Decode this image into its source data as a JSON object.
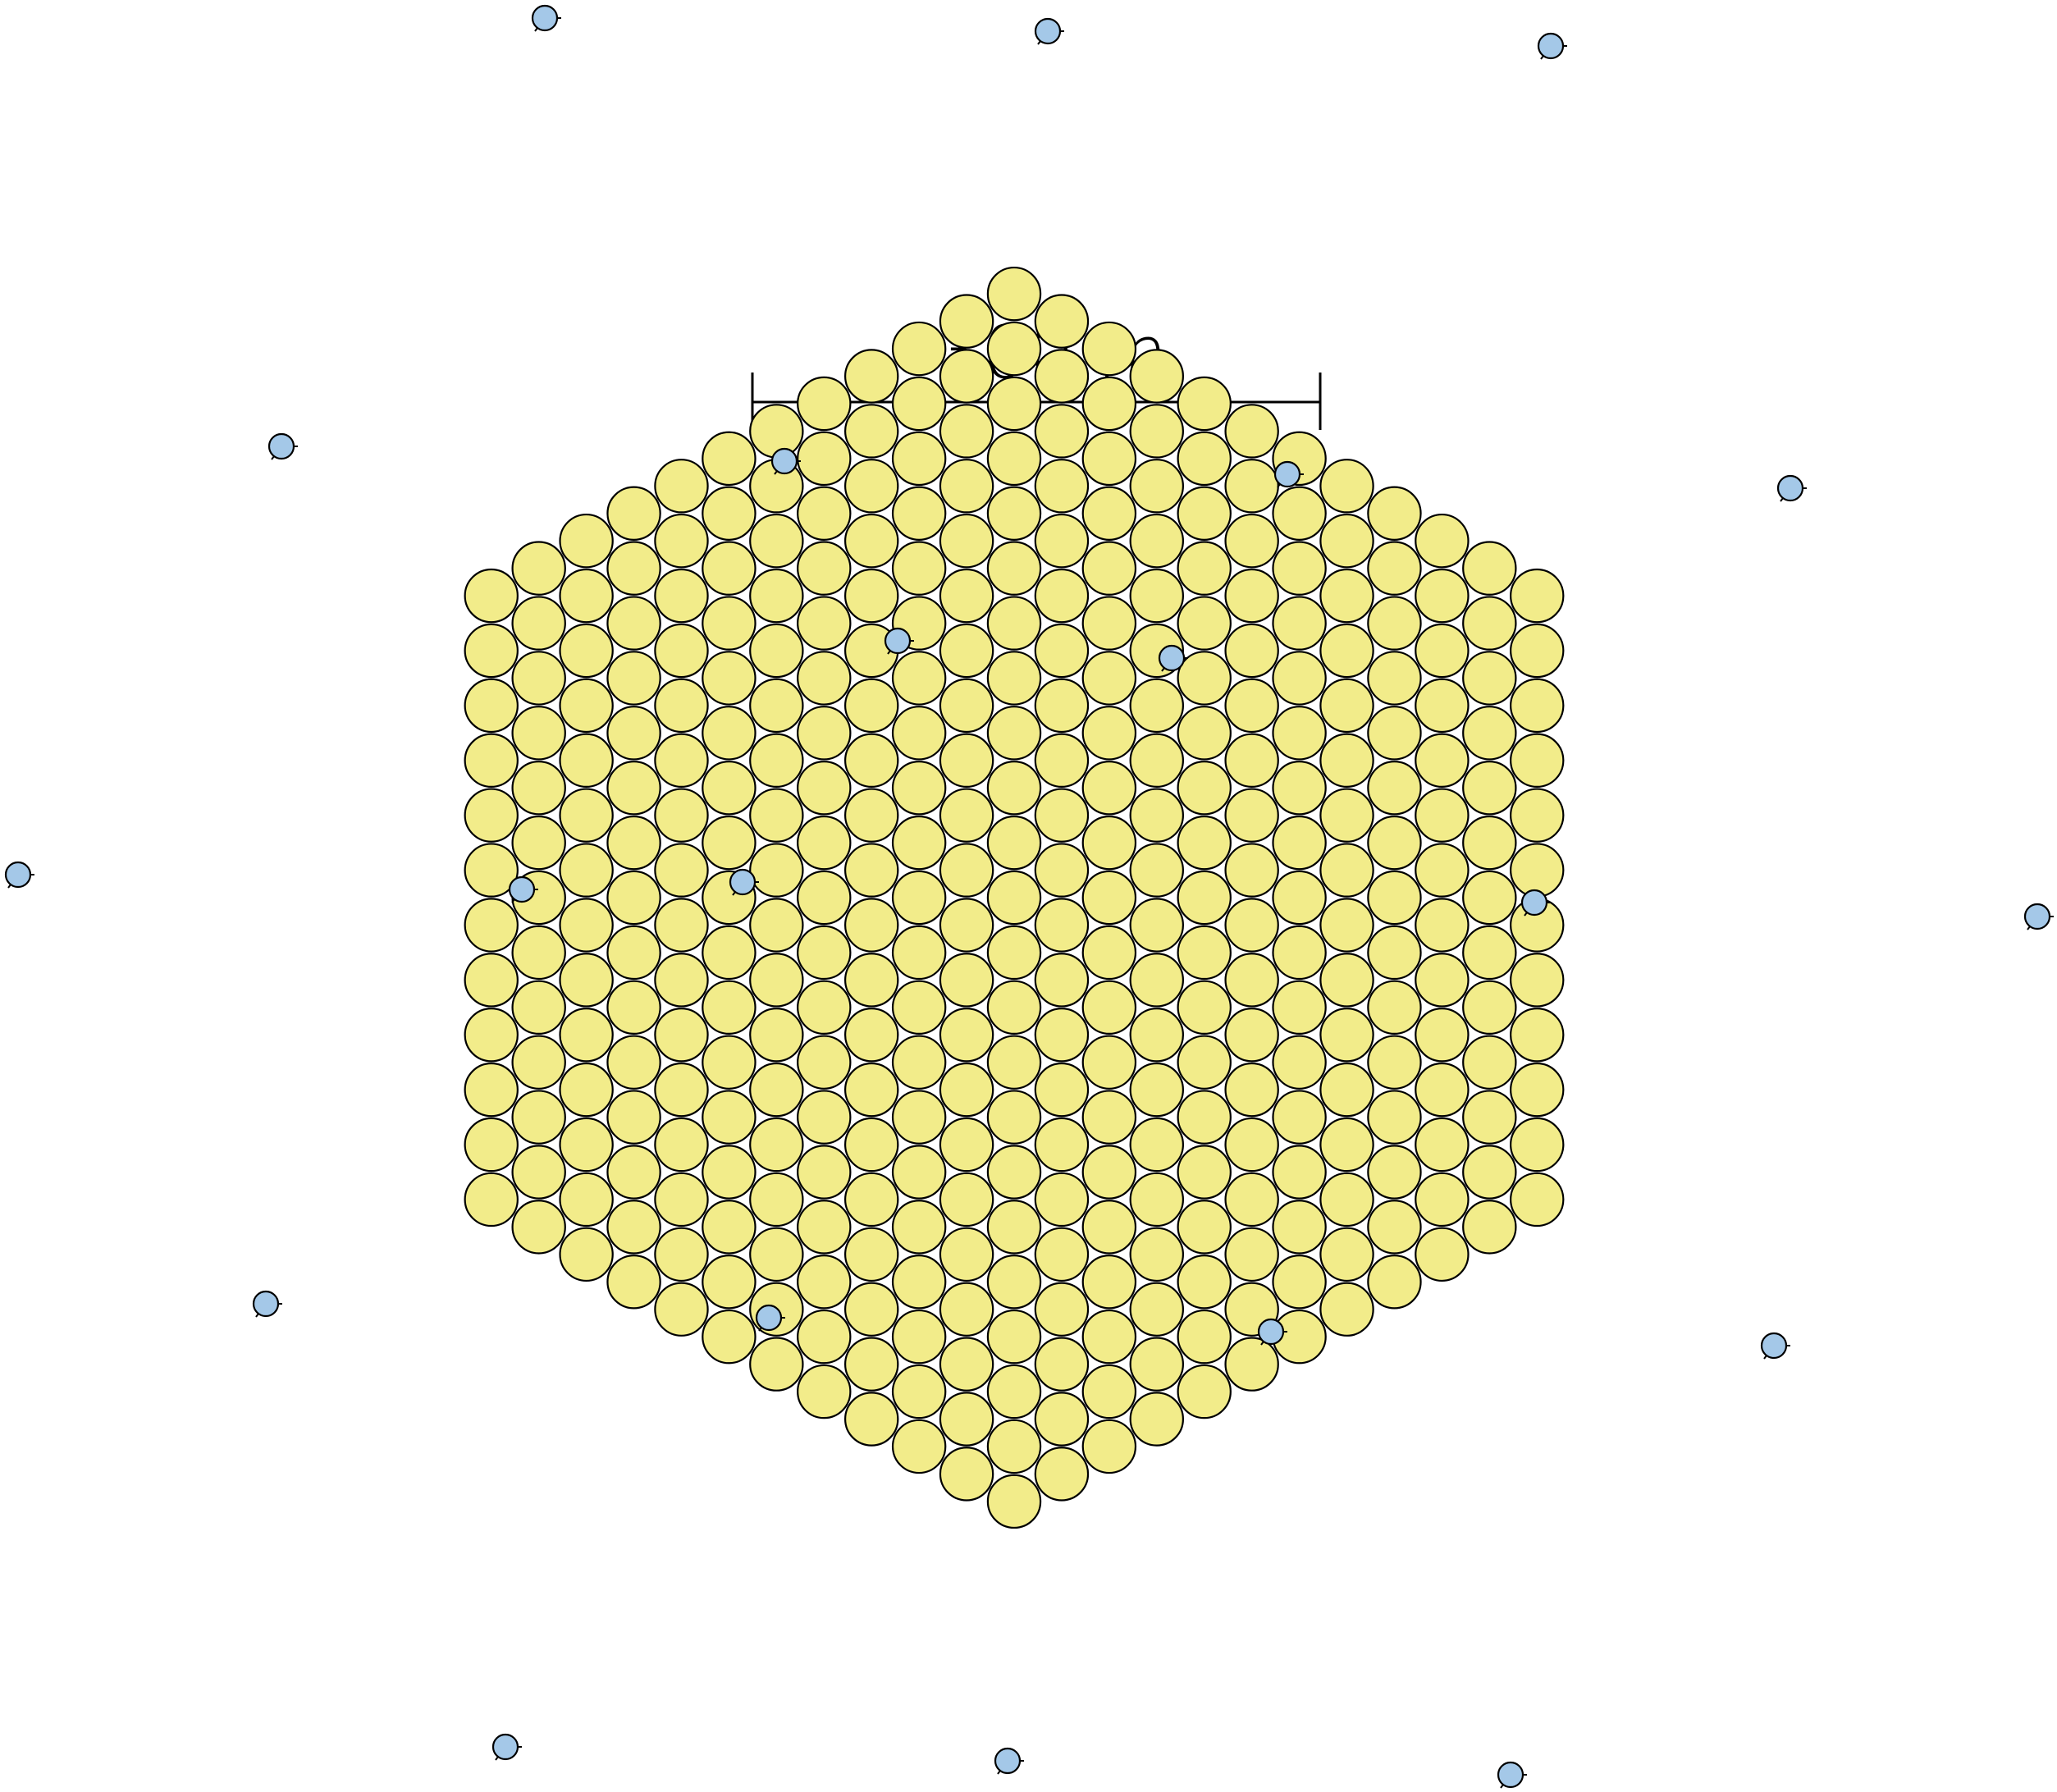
{
  "scale_bar": {
    "label": "300 m",
    "length_m": 300
  },
  "colors": {
    "dense_array_fill": "#f2ec8a",
    "outer_station_fill": "#a4c8e8",
    "stroke": "#000000",
    "background": "#ffffff"
  },
  "layout_info": {
    "dense_array": {
      "shape": "hexagon",
      "rings": 11,
      "station_count": 397,
      "spacing_m": 29,
      "icon": "yellow-station-icon"
    },
    "outer_array": {
      "station_count": 24,
      "icon": "blue-station-icon"
    }
  }
}
